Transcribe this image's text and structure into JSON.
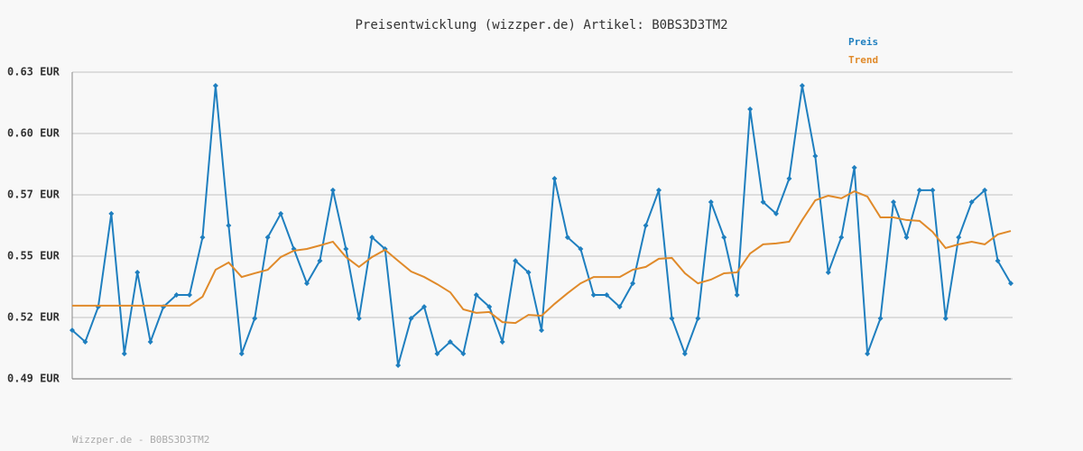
{
  "chart_data": {
    "type": "line",
    "title": "Preisentwicklung (wizzper.de) Artikel: B0BS3D3TM2",
    "footer": "Wizzper.de - B0BS3D3TM2",
    "ylim": [
      0.49,
      0.63
    ],
    "yticks": [
      {
        "value": 0.49,
        "label": "0.49 EUR"
      },
      {
        "value": 0.518,
        "label": "0.52 EUR"
      },
      {
        "value": 0.546,
        "label": "0.55 EUR"
      },
      {
        "value": 0.574,
        "label": "0.57 EUR"
      },
      {
        "value": 0.602,
        "label": "0.60 EUR"
      },
      {
        "value": 0.63,
        "label": "0.63 EUR"
      }
    ],
    "grid": true,
    "legend": "top-right",
    "series": [
      {
        "name": "Preis",
        "color": "#1f7fbf",
        "markers": true,
        "values": [
          0.5122,
          0.5069,
          0.5229,
          0.5654,
          0.5015,
          0.5386,
          0.5069,
          0.5229,
          0.5283,
          0.5283,
          0.5546,
          0.6238,
          0.56,
          0.5015,
          0.5176,
          0.5546,
          0.5654,
          0.5493,
          0.5336,
          0.5439,
          0.5761,
          0.5493,
          0.5176,
          0.5546,
          0.5493,
          0.4962,
          0.5176,
          0.5229,
          0.5015,
          0.5069,
          0.5015,
          0.5283,
          0.5229,
          0.5069,
          0.5439,
          0.5386,
          0.5122,
          0.5814,
          0.5546,
          0.5493,
          0.5283,
          0.5283,
          0.5229,
          0.5336,
          0.56,
          0.5761,
          0.5176,
          0.5015,
          0.5176,
          0.5707,
          0.5546,
          0.5283,
          0.6131,
          0.5707,
          0.5654,
          0.5814,
          0.6238,
          0.5917,
          0.5386,
          0.5546,
          0.5864,
          0.5015,
          0.5176,
          0.5707,
          0.5546,
          0.5761,
          0.5761,
          0.5176,
          0.5546,
          0.5707,
          0.5761,
          0.5439,
          0.5336
        ]
      },
      {
        "name": "Trend",
        "color": "#e08a2a",
        "markers": false,
        "values": [
          0.5234,
          0.5234,
          0.5234,
          0.5234,
          0.5234,
          0.5234,
          0.5234,
          0.5234,
          0.5234,
          0.5234,
          0.5275,
          0.5398,
          0.5431,
          0.5365,
          0.5382,
          0.5398,
          0.5456,
          0.5485,
          0.5493,
          0.5509,
          0.5526,
          0.5456,
          0.5411,
          0.5456,
          0.5489,
          0.5439,
          0.539,
          0.5365,
          0.5332,
          0.5295,
          0.5217,
          0.5201,
          0.5205,
          0.5159,
          0.5155,
          0.5192,
          0.5188,
          0.5242,
          0.5291,
          0.5336,
          0.5365,
          0.5365,
          0.5365,
          0.5398,
          0.5411,
          0.5448,
          0.5452,
          0.5382,
          0.5336,
          0.5353,
          0.5382,
          0.5386,
          0.5472,
          0.5514,
          0.5518,
          0.5526,
          0.5625,
          0.5715,
          0.5736,
          0.5724,
          0.5756,
          0.5732,
          0.5637,
          0.5637,
          0.5625,
          0.5621,
          0.5571,
          0.5497,
          0.5514,
          0.5526,
          0.5514,
          0.5559,
          0.5575
        ]
      }
    ]
  }
}
